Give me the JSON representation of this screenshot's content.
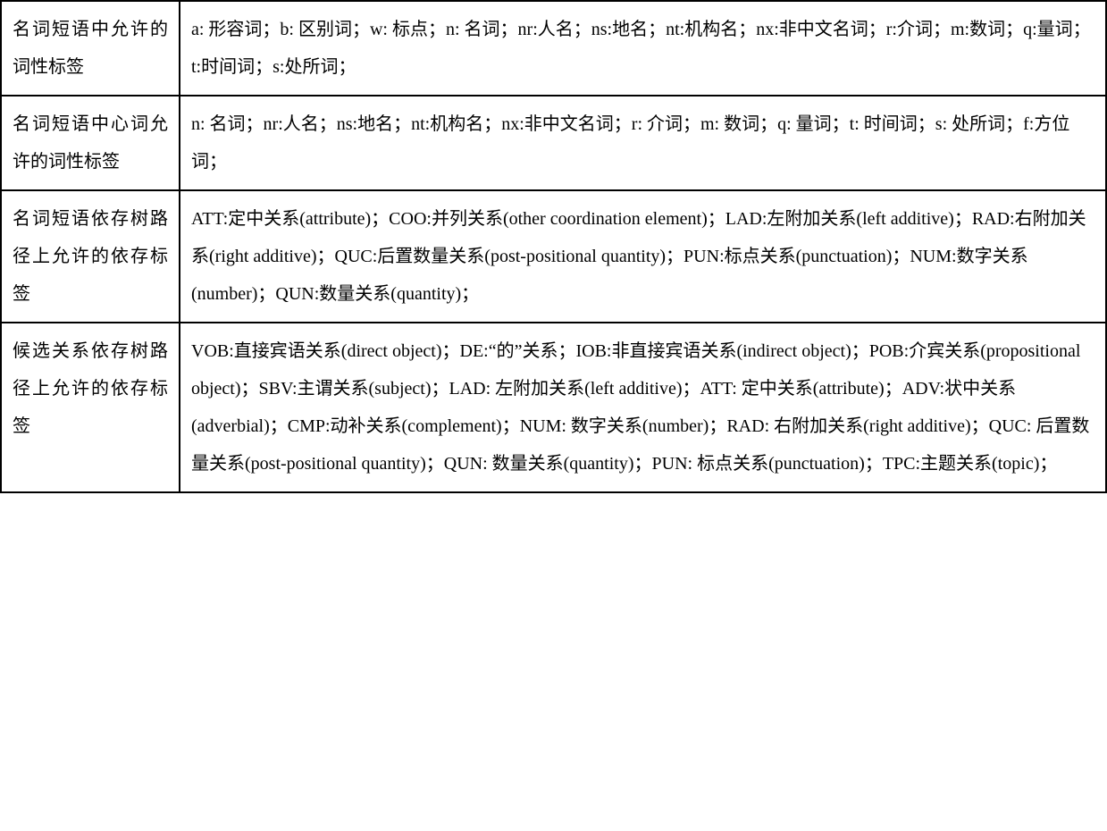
{
  "table": {
    "border_color": "#000000",
    "background_color": "#ffffff",
    "font_size": 20,
    "line_height": 2.1,
    "label_col_width": 200,
    "rows": [
      {
        "label": "名词短语中允许的词性标签",
        "content": "a: 形容词；b: 区别词；w: 标点；n: 名词；nr:人名；ns:地名；nt:机构名；nx:非中文名词；r:介词；m:数词；q:量词；t:时间词；s:处所词；"
      },
      {
        "label": "名词短语中心词允许的词性标签",
        "content": "n: 名词；nr:人名；ns:地名；nt:机构名；nx:非中文名词；r: 介词；m: 数词；q: 量词；t: 时间词；s: 处所词；f:方位词；"
      },
      {
        "label": "名词短语依存树路径上允许的依存标签",
        "content": "ATT:定中关系(attribute)；COO:并列关系(other coordination element)；LAD:左附加关系(left additive)；RAD:右附加关系(right additive)；QUC:后置数量关系(post-positional quantity)；PUN:标点关系(punctuation)；NUM:数字关系(number)；QUN:数量关系(quantity)；"
      },
      {
        "label": "候选关系依存树路径上允许的依存标签",
        "content": "VOB:直接宾语关系(direct object)；DE:“的”关系；IOB:非直接宾语关系(indirect object)；POB:介宾关系(propositional object)；SBV:主谓关系(subject)；LAD: 左附加关系(left additive)；ATT: 定中关系(attribute)；ADV:状中关系(adverbial)；CMP:动补关系(complement)；NUM: 数字关系(number)；RAD: 右附加关系(right additive)；QUC: 后置数量关系(post-positional quantity)；QUN: 数量关系(quantity)；PUN: 标点关系(punctuation)；TPC:主题关系(topic)；"
      }
    ]
  }
}
